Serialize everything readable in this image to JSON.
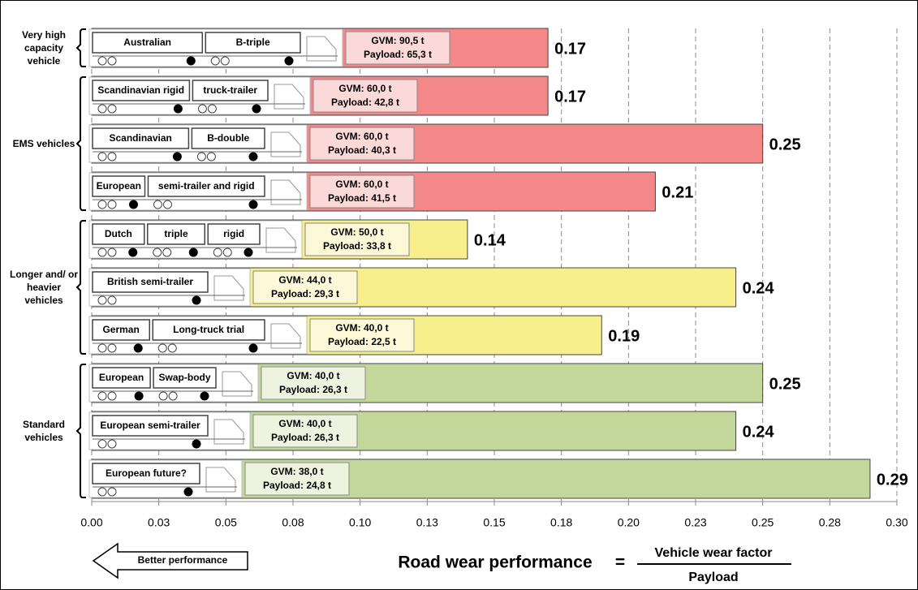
{
  "chart_data": {
    "type": "bar",
    "orientation": "horizontal",
    "xlim": [
      0,
      0.3
    ],
    "xticks": [
      {
        "value": 0,
        "label": "0.00"
      },
      {
        "value": 0.025,
        "label": "0.03"
      },
      0.05,
      {
        "value": 0.075,
        "label": "0.08"
      },
      {
        "value": 0.1,
        "label": "0.10"
      },
      {
        "value": 0.125,
        "label": "0.13"
      },
      0.15,
      {
        "value": 0.175,
        "label": "0.18"
      },
      {
        "value": 0.2,
        "label": "0.20"
      },
      {
        "value": 0.225,
        "label": "0.23"
      },
      0.25,
      {
        "value": 0.275,
        "label": "0.28"
      },
      {
        "value": 0.3,
        "label": "0.30"
      }
    ],
    "grid": true,
    "groups": [
      {
        "label": "Very high capacity vehicle",
        "color": "#f48787",
        "box_color": "#fcd9d9",
        "vehicles": [
          {
            "labels": [
              "Australian",
              "B-triple"
            ],
            "gvm": "GVM: 90,5 t",
            "payload": "Payload: 65,3 t"
          }
        ],
        "values": [
          0.17
        ]
      },
      {
        "label": "EMS vehicles",
        "color": "#f48787",
        "box_color": "#fcd9d9",
        "vehicles": [
          {
            "labels": [
              "Scandinavian rigid",
              "truck-trailer"
            ],
            "gvm": "GVM: 60,0 t",
            "payload": "Payload: 42,8 t"
          },
          {
            "labels": [
              "Scandinavian",
              "B-double"
            ],
            "gvm": "GVM: 60,0 t",
            "payload": "Payload: 40,3 t"
          },
          {
            "labels": [
              "European",
              "semi-trailer  and rigid"
            ],
            "gvm": "GVM: 60,0 t",
            "payload": "Payload: 41,5 t"
          }
        ],
        "values": [
          0.17,
          0.25,
          0.21
        ]
      },
      {
        "label": "Longer and/ or heavier vehicles",
        "color": "#f7ef8c",
        "box_color": "#fdf9d8",
        "vehicles": [
          {
            "labels": [
              "Dutch",
              "triple",
              "rigid"
            ],
            "gvm": "GVM: 50,0 t",
            "payload": "Payload: 33,8 t"
          },
          {
            "labels": [
              "British semi-trailer"
            ],
            "gvm": "GVM: 44,0 t",
            "payload": "Payload: 29,3 t"
          },
          {
            "labels": [
              "German",
              "Long-truck trial"
            ],
            "gvm": "GVM: 40,0 t",
            "payload": "Payload: 22,5 t"
          }
        ],
        "values": [
          0.14,
          0.24,
          0.19
        ]
      },
      {
        "label": "Standard vehicles",
        "color": "#c4d79b",
        "box_color": "#eef3e0",
        "vehicles": [
          {
            "labels": [
              "European",
              "Swap-body"
            ],
            "gvm": "GVM: 40,0 t",
            "payload": "Payload: 26,3 t"
          },
          {
            "labels": [
              "European semi-trailer"
            ],
            "gvm": "GVM: 40,0 t",
            "payload": "Payload: 26,3 t"
          },
          {
            "labels": [
              "European future?"
            ],
            "gvm": "GVM: 38,0 t",
            "payload": "Payload: 24,8 t"
          }
        ],
        "values": [
          0.25,
          0.24,
          0.29
        ]
      }
    ],
    "arrow_label": "Better performance",
    "formula": {
      "lhs": "Road wear performance",
      "op": "=",
      "numerator": "Vehicle wear factor",
      "denominator": "Payload"
    }
  }
}
